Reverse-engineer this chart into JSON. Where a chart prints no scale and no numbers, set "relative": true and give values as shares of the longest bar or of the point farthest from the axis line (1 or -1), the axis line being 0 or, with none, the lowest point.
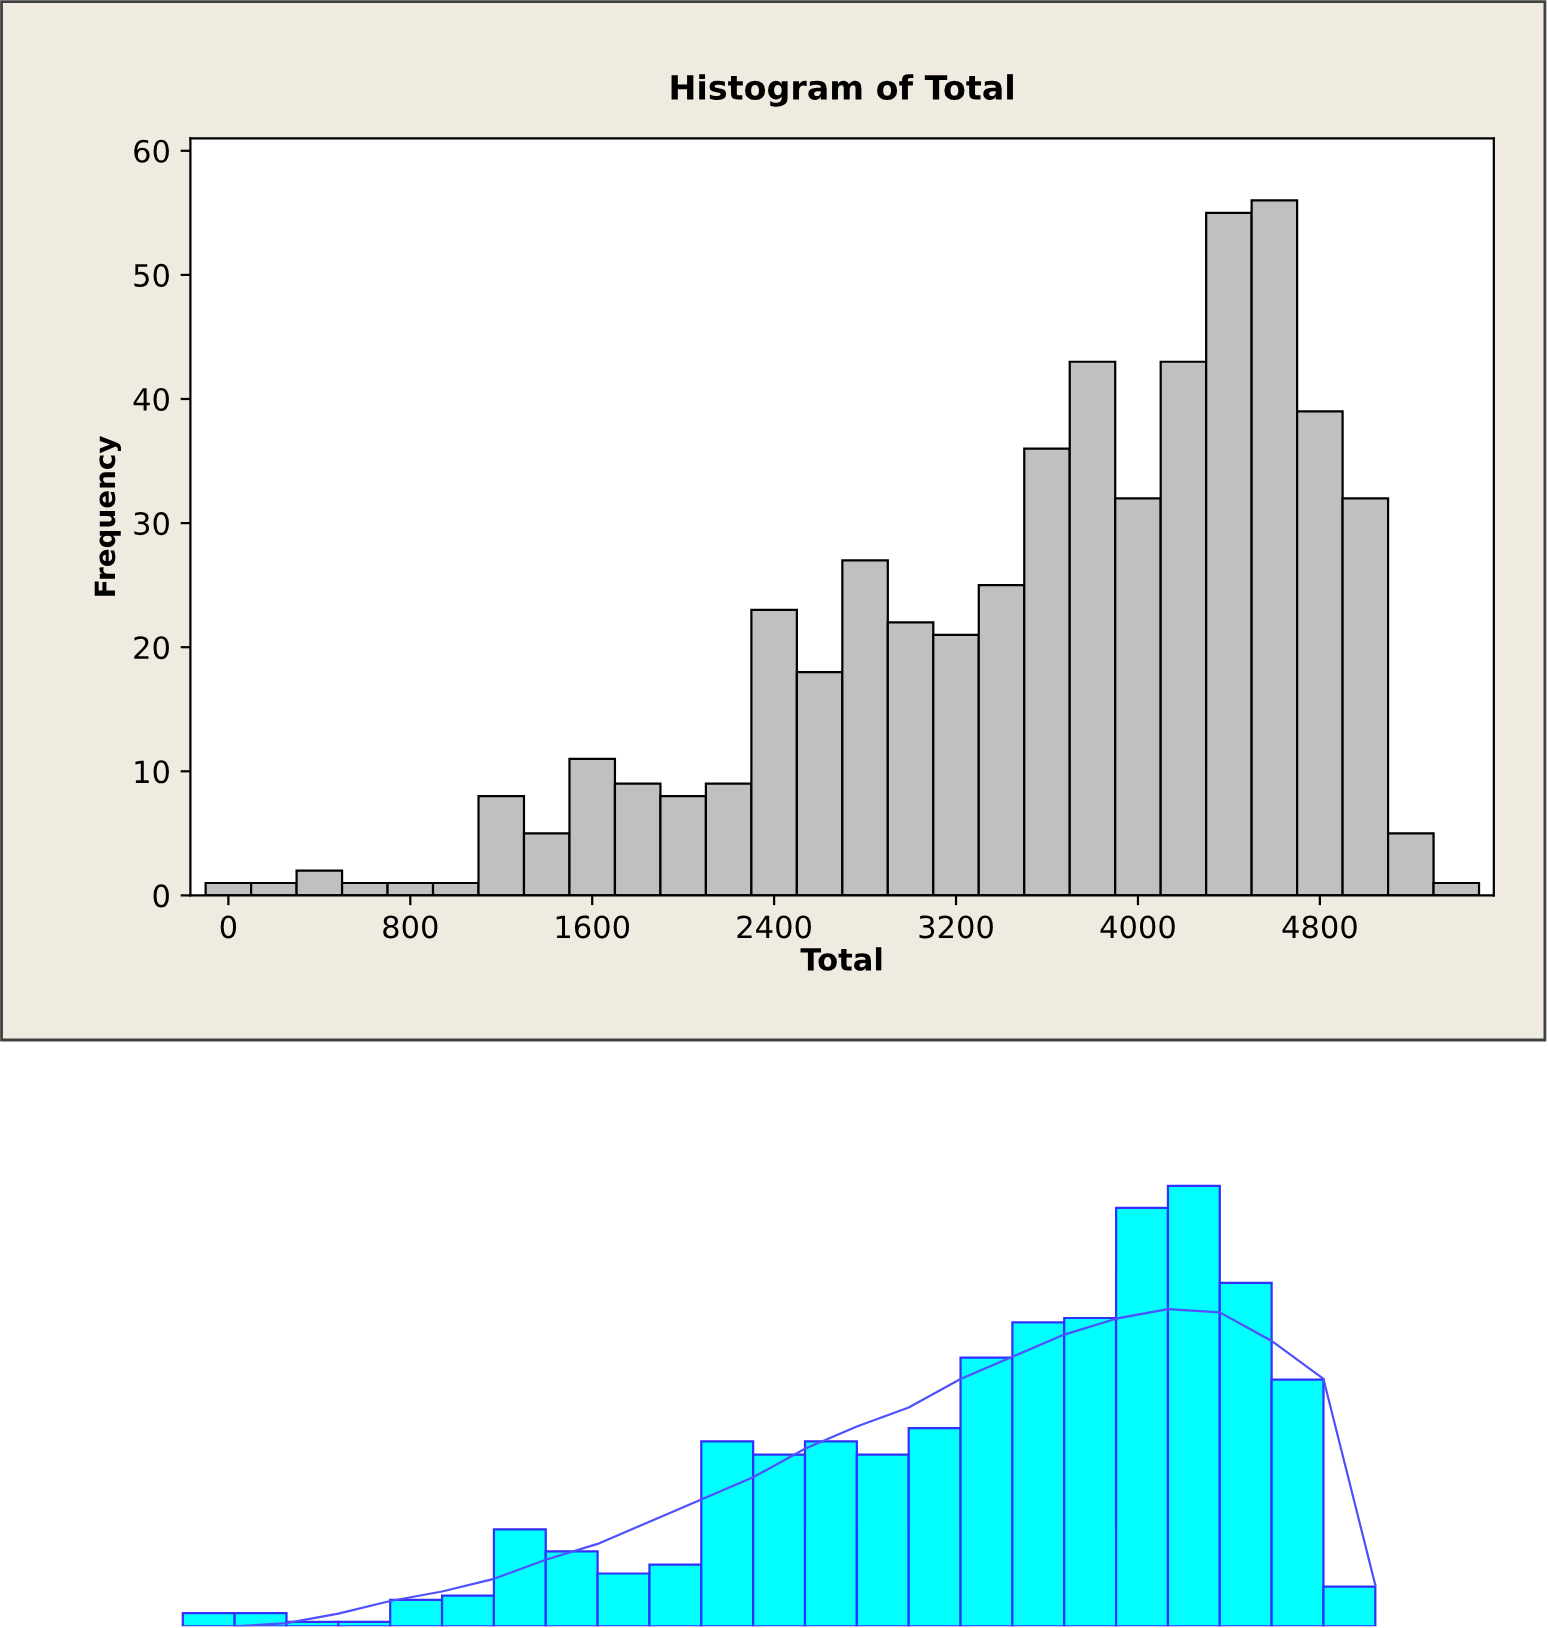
{
  "chart_data": [
    {
      "type": "histogram",
      "title": "Histogram of Total",
      "xlabel": "Total",
      "ylabel": "Frequency",
      "bins": [
        -100,
        100,
        300,
        500,
        700,
        900,
        1100,
        1300,
        1500,
        1700,
        1900,
        2100,
        2300,
        2500,
        2700,
        2900,
        3100,
        3300,
        3500,
        3700,
        3900,
        4100,
        4300,
        4500,
        4700,
        4900,
        5100,
        5300,
        5500
      ],
      "values": [
        1,
        1,
        2,
        1,
        1,
        1,
        8,
        5,
        11,
        9,
        8,
        9,
        23,
        18,
        27,
        22,
        21,
        25,
        36,
        43,
        32,
        43,
        55,
        56,
        39,
        32,
        5,
        1
      ],
      "color": "#c0c0c0",
      "xlim": [
        -167,
        5565
      ],
      "ylim": [
        0,
        61
      ],
      "xticks": [
        0,
        800,
        1600,
        2400,
        3200,
        4000,
        4800
      ],
      "yticks": [
        0,
        10,
        20,
        30,
        40,
        50,
        60
      ],
      "grid": false
    },
    {
      "type": "bar",
      "relative": true,
      "tick_labels": false,
      "color": "#00ffff",
      "categories": [
        null,
        null,
        null,
        null,
        null,
        null,
        null,
        null,
        null,
        null,
        null,
        null,
        null,
        null,
        null,
        null,
        null,
        null,
        null,
        null,
        null,
        null,
        null
      ],
      "values": [
        0.03,
        0.03,
        0.01,
        0.01,
        0.06,
        0.07,
        0.22,
        0.17,
        0.12,
        0.14,
        0.42,
        0.39,
        0.42,
        0.39,
        0.45,
        0.61,
        0.69,
        0.7,
        0.95,
        1,
        0.78,
        0.56,
        0.09
      ]
    },
    {
      "type": "line",
      "relative": true,
      "tick_labels": false,
      "color": "#5050ff",
      "categories": [
        null,
        null,
        null,
        null,
        null,
        null,
        null,
        null,
        null,
        null,
        null,
        null,
        null,
        null,
        null,
        null,
        null,
        null,
        null,
        null,
        null,
        null,
        null
      ],
      "values": [
        0,
        0.01,
        0.04,
        0.08,
        0.11,
        0.15,
        0.21,
        0.26,
        0.33,
        0.4,
        0.47,
        0.56,
        0.63,
        0.69,
        0.78,
        0.85,
        0.92,
        0.97,
        1,
        0.99,
        0.9,
        0.78,
        0.13
      ]
    }
  ]
}
